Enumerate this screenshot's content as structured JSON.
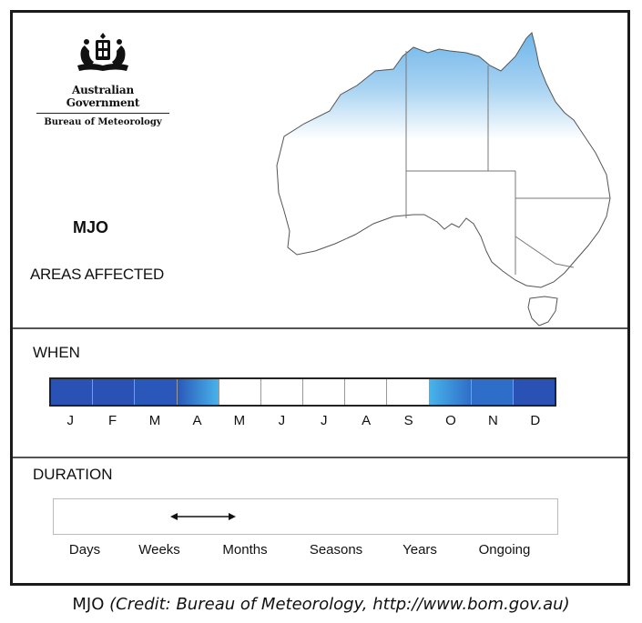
{
  "logo": {
    "government": "Australian Government",
    "bureau": "Bureau of Meteorology",
    "crest_icon": "coat-of-arms-icon"
  },
  "title": "MJO",
  "areas_label": "AREAS AFFECTED",
  "when": {
    "heading": "WHEN",
    "months": [
      {
        "label": "J",
        "color": "#2a52b4"
      },
      {
        "label": "F",
        "color": "#2a52b4"
      },
      {
        "label": "M",
        "color": "#2a58ba"
      },
      {
        "label": "A",
        "color": "gradient"
      },
      {
        "label": "M",
        "color": "#ffffff"
      },
      {
        "label": "J",
        "color": "#ffffff"
      },
      {
        "label": "J",
        "color": "#ffffff"
      },
      {
        "label": "A",
        "color": "#ffffff"
      },
      {
        "label": "S",
        "color": "#ffffff"
      },
      {
        "label": "O",
        "color": "gradient-rev"
      },
      {
        "label": "N",
        "color": "#2f6ec8"
      },
      {
        "label": "D",
        "color": "#2a52b4"
      }
    ]
  },
  "duration": {
    "heading": "DURATION",
    "labels": [
      "Days",
      "Weeks",
      "Months",
      "Seasons",
      "Years",
      "Ongoing"
    ],
    "range": {
      "from": "Weeks",
      "to": "Months"
    }
  },
  "caption": {
    "name": "MJO",
    "credit": "(Credit: Bureau of Meteorology, http://www.bom.gov.au)"
  }
}
